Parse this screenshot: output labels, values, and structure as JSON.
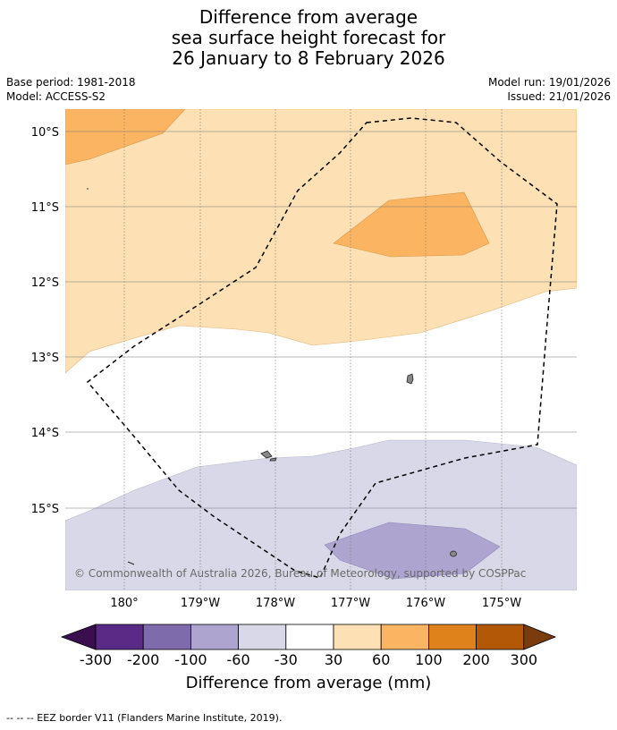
{
  "title": {
    "line1": "Difference from average",
    "line2": "sea surface height forecast for",
    "line3": "26 January to 8 February 2026"
  },
  "meta": {
    "base_period": "Base period: 1981-2018",
    "model": "Model: ACCESS-S2",
    "model_run": "Model run: 19/01/2026",
    "issued": "Issued: 21/01/2026"
  },
  "map": {
    "lat_labels": [
      "10°S",
      "11°S",
      "12°S",
      "13°S",
      "14°S",
      "15°S"
    ],
    "lon_labels": [
      "180°",
      "179°W",
      "178°W",
      "177°W",
      "176°W",
      "175°W"
    ],
    "copyright": "© Commonwealth of Australia 2026, Bureau of Meteorology, supported by COSPPac",
    "overlay": "EEZ border (dashed)"
  },
  "legend": {
    "labels": [
      "-300",
      "-200",
      "-100",
      "-60",
      "-30",
      "30",
      "60",
      "100",
      "200",
      "300"
    ],
    "colors": [
      "#3b0f4f",
      "#5b2a86",
      "#7e6bab",
      "#ada5cf",
      "#d8d8e8",
      "#ffffff",
      "#fde0b3",
      "#fbb462",
      "#e0821c",
      "#b35806",
      "#7a3c0d"
    ],
    "title": "Difference from average (mm)"
  },
  "footer": "--  --  -- EEZ border V11 (Flanders Marine Institute, 2019)."
}
